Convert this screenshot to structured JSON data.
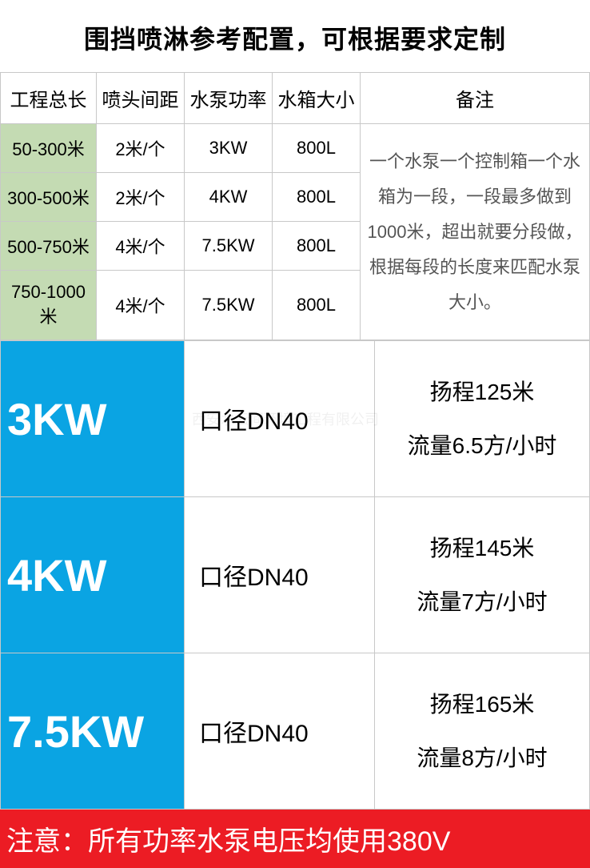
{
  "title": "围挡喷淋参考配置，可根据要求定制",
  "config_table": {
    "headers": [
      "工程总长",
      "喷头间距",
      "水泵功率",
      "水箱大小",
      "备注"
    ],
    "rows": [
      {
        "length": "50-300米",
        "spacing": "2米/个",
        "power": "3KW",
        "tank": "800L"
      },
      {
        "length": "300-500米",
        "spacing": "2米/个",
        "power": "4KW",
        "tank": "800L"
      },
      {
        "length": "500-750米",
        "spacing": "4米/个",
        "power": "7.5KW",
        "tank": "800L"
      },
      {
        "length": "750-1000米",
        "spacing": "4米/个",
        "power": "7.5KW",
        "tank": "800L"
      }
    ],
    "remark": "一个水泵一个控制箱一个水箱为一段，一段最多做到1000米，超出就要分段做，根据每段的长度来匹配水泵大小。"
  },
  "pump_table": {
    "rows": [
      {
        "kw": "3KW",
        "diameter": "口径DN40",
        "head": "扬程125米",
        "flow": "流量6.5方/小时"
      },
      {
        "kw": "4KW",
        "diameter": "口径DN40",
        "head": "扬程145米",
        "flow": "流量7方/小时"
      },
      {
        "kw": "7.5KW",
        "diameter": "口径DN40",
        "head": "扬程165米",
        "flow": "流量8方/小时"
      }
    ]
  },
  "notice": "注意：所有功率水泵电压均使用380V",
  "watermark": "西安水云间环境工程有限公司",
  "colors": {
    "header_green": "#c4dbb3",
    "kw_blue": "#0aa4e3",
    "notice_red": "#ec1c24",
    "border": "#c8c8c8"
  }
}
